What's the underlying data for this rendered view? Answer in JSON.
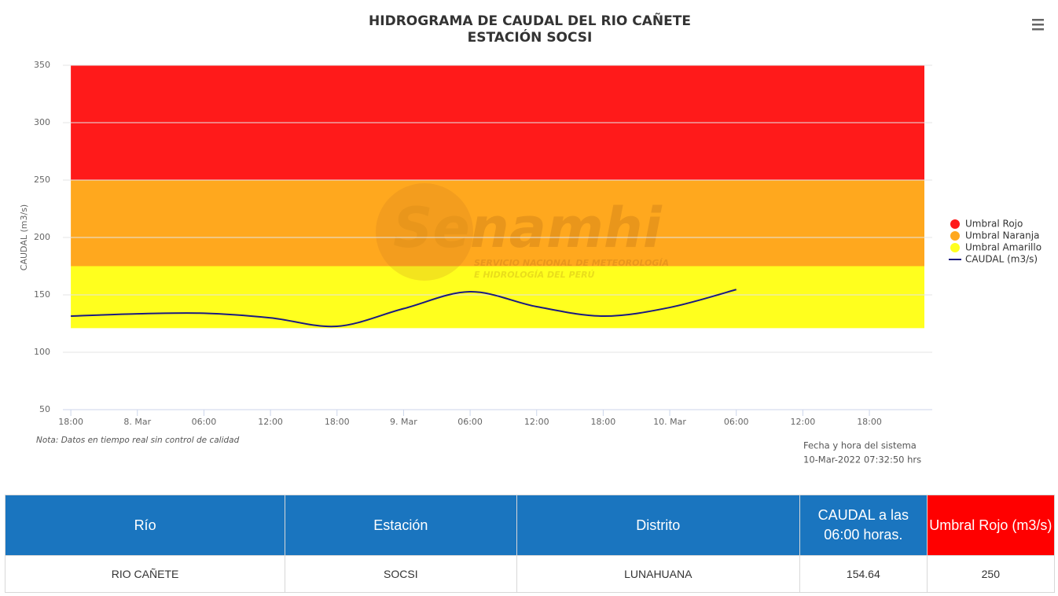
{
  "chart_data": {
    "type": "line",
    "title": "HIDROGRAMA DE CAUDAL DEL RIO CAÑETE",
    "subtitle": "ESTACIÓN SOCSI",
    "y_label": "CAUDAL (m3/s)",
    "watermark": {
      "brand": "Senamhi",
      "line1": "SERVICIO NACIONAL DE METEOROLOGÍA",
      "line2": "E HIDROLOGÍA DEL PERÚ"
    },
    "note": "Nota: Datos en tiempo real sin control de calidad",
    "system_time_label": "Fecha y hora del sistema",
    "system_time": "10-Mar-2022 07:32:50 hrs",
    "ylim": [
      50,
      350
    ],
    "yticks": [
      50,
      100,
      150,
      200,
      250,
      300,
      350
    ],
    "xlim": [
      "7 Mar 17:17",
      "10 Mar 23:40"
    ],
    "xticks": [
      {
        "value": "7 Mar 18:00",
        "label": "18:00"
      },
      {
        "value": "8 Mar 00:00",
        "label": "8. Mar"
      },
      {
        "value": "8 Mar 06:00",
        "label": "06:00"
      },
      {
        "value": "8 Mar 12:00",
        "label": "12:00"
      },
      {
        "value": "8 Mar 18:00",
        "label": "18:00"
      },
      {
        "value": "9 Mar 00:00",
        "label": "9. Mar"
      },
      {
        "value": "9 Mar 06:00",
        "label": "06:00"
      },
      {
        "value": "9 Mar 12:00",
        "label": "12:00"
      },
      {
        "value": "9 Mar 18:00",
        "label": "18:00"
      },
      {
        "value": "10 Mar 00:00",
        "label": "10. Mar"
      },
      {
        "value": "10 Mar 06:00",
        "label": "06:00"
      },
      {
        "value": "10 Mar 12:00",
        "label": "12:00"
      },
      {
        "value": "10 Mar 18:00",
        "label": "18:00"
      }
    ],
    "grid": true,
    "legend_position": "right",
    "bands": [
      {
        "name": "Umbral Rojo",
        "color": "#ff1a1a",
        "from": 250,
        "to": 350
      },
      {
        "name": "Umbral Naranja",
        "color": "#ffa81e",
        "from": 175,
        "to": 250
      },
      {
        "name": "Umbral Amarillo",
        "color": "#ffff1e",
        "from": 121,
        "to": 175
      }
    ],
    "x": [
      "7 Mar 18:00",
      "8 Mar 00:00",
      "8 Mar 06:00",
      "8 Mar 12:00",
      "8 Mar 18:00",
      "9 Mar 00:00",
      "9 Mar 06:00",
      "9 Mar 12:00",
      "9 Mar 18:00",
      "10 Mar 00:00",
      "10 Mar 06:00"
    ],
    "series": [
      {
        "name": "CAUDAL (m3/s)",
        "color": "#1a1a80",
        "values": [
          131.5,
          133.5,
          134,
          130,
          122.6,
          138,
          152.7,
          139.7,
          131.5,
          139,
          154.64
        ]
      }
    ]
  },
  "table": {
    "headers": [
      "Río",
      "Estación",
      "Distrito",
      "CAUDAL a las 06:00 horas.",
      "Umbral Rojo (m3/s)"
    ],
    "rows": [
      [
        "RIO CAÑETE",
        "SOCSI",
        "LUNAHUANA",
        "154.64",
        "250"
      ]
    ]
  }
}
